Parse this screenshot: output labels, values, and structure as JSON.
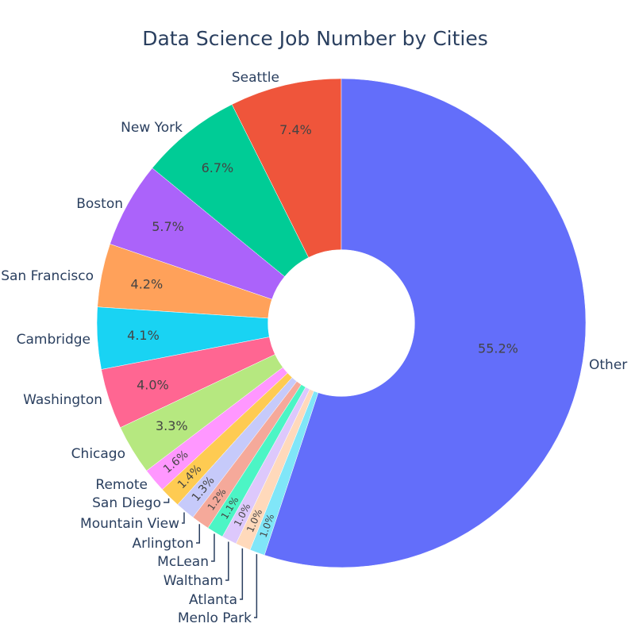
{
  "chart_data": {
    "type": "pie",
    "hole": 0.3,
    "title": "Data Science Job Number by Cities",
    "direction": "counterclockwise",
    "slices": [
      {
        "label": "Seattle",
        "value": 7.4,
        "text": "7.4%",
        "color": "#ef553b"
      },
      {
        "label": "New York",
        "value": 6.7,
        "text": "6.7%",
        "color": "#00cc96"
      },
      {
        "label": "Boston",
        "value": 5.7,
        "text": "5.7%",
        "color": "#ab63fa"
      },
      {
        "label": "San Francisco",
        "value": 4.2,
        "text": "4.2%",
        "color": "#ffa15a"
      },
      {
        "label": "Cambridge",
        "value": 4.1,
        "text": "4.1%",
        "color": "#19d3f3"
      },
      {
        "label": "Washington",
        "value": 4.0,
        "text": "4.0%",
        "color": "#ff6692"
      },
      {
        "label": "Chicago",
        "value": 3.3,
        "text": "3.3%",
        "color": "#b6e880"
      },
      {
        "label": "Remote",
        "value": 1.6,
        "text": "1.6%",
        "color": "#ff97ff"
      },
      {
        "label": "San Diego",
        "value": 1.4,
        "text": "1.4%",
        "color": "#fecb52"
      },
      {
        "label": "Mountain View",
        "value": 1.3,
        "text": "1.3%",
        "color": "#c6cafa"
      },
      {
        "label": "Arlington",
        "value": 1.2,
        "text": "1.2%",
        "color": "#f5a99a"
      },
      {
        "label": "McLean",
        "value": 1.1,
        "text": "1.1%",
        "color": "#4cf5c5"
      },
      {
        "label": "Waltham",
        "value": 1.0,
        "text": "1.0%",
        "color": "#ddc8fc"
      },
      {
        "label": "Atlanta",
        "value": 1.0,
        "text": "1.0%",
        "color": "#ffd9bb"
      },
      {
        "label": "Menlo Park",
        "value": 1.0,
        "text": "1.0%",
        "color": "#80e6f8"
      },
      {
        "label": "Other",
        "value": 55.2,
        "text": "55.2%",
        "color": "#636efa"
      }
    ]
  }
}
